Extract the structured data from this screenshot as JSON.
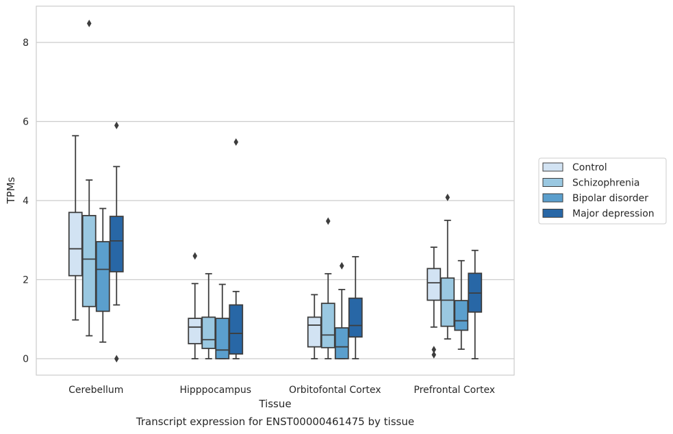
{
  "chart_data": {
    "type": "box",
    "caption": "Transcript expression for ENST00000461475 by tissue",
    "xlabel": "Tissue",
    "ylabel": "TPMs",
    "ylim": [
      -0.4,
      9.0
    ],
    "yticks": [
      0,
      2,
      4,
      6,
      8
    ],
    "grid": "horizontal",
    "legend_position": "right",
    "categories": [
      "Cerebellum",
      "Hipppocampus",
      "Orbitofontal Cortex",
      "Prefrontal Cortex"
    ],
    "series": [
      {
        "name": "Control",
        "color": "#d2e3f3",
        "boxes": [
          {
            "whislo": 0.98,
            "q1": 2.1,
            "med": 2.78,
            "q3": 3.7,
            "whishi": 5.64,
            "fliers": []
          },
          {
            "whislo": 0.0,
            "q1": 0.38,
            "med": 0.8,
            "q3": 1.02,
            "whishi": 1.9,
            "fliers": [
              2.6
            ]
          },
          {
            "whislo": 0.0,
            "q1": 0.3,
            "med": 0.85,
            "q3": 1.05,
            "whishi": 1.62,
            "fliers": []
          },
          {
            "whislo": 0.8,
            "q1": 1.48,
            "med": 1.92,
            "q3": 2.28,
            "whishi": 2.82,
            "fliers": [
              0.23,
              0.1
            ]
          }
        ]
      },
      {
        "name": "Schizophrenia",
        "color": "#9ac8e1",
        "boxes": [
          {
            "whislo": 0.58,
            "q1": 1.32,
            "med": 2.52,
            "q3": 3.62,
            "whishi": 4.52,
            "fliers": [
              8.48
            ]
          },
          {
            "whislo": 0.0,
            "q1": 0.26,
            "med": 0.48,
            "q3": 1.05,
            "whishi": 2.15,
            "fliers": []
          },
          {
            "whislo": 0.0,
            "q1": 0.28,
            "med": 0.6,
            "q3": 1.4,
            "whishi": 2.15,
            "fliers": [
              3.48
            ]
          },
          {
            "whislo": 0.5,
            "q1": 0.82,
            "med": 1.48,
            "q3": 2.04,
            "whishi": 3.5,
            "fliers": [
              4.08
            ]
          }
        ]
      },
      {
        "name": "Bipolar disorder",
        "color": "#5b9fcd",
        "boxes": [
          {
            "whislo": 0.42,
            "q1": 1.2,
            "med": 2.26,
            "q3": 2.96,
            "whishi": 3.8,
            "fliers": []
          },
          {
            "whislo": 0.0,
            "q1": 0.0,
            "med": 0.22,
            "q3": 1.02,
            "whishi": 1.88,
            "fliers": []
          },
          {
            "whislo": 0.0,
            "q1": 0.0,
            "med": 0.3,
            "q3": 0.78,
            "whishi": 1.75,
            "fliers": [
              2.35
            ]
          },
          {
            "whislo": 0.24,
            "q1": 0.72,
            "med": 0.96,
            "q3": 1.47,
            "whishi": 2.48,
            "fliers": []
          }
        ]
      },
      {
        "name": "Major depression",
        "color": "#2867a6",
        "boxes": [
          {
            "whislo": 1.36,
            "q1": 2.2,
            "med": 2.98,
            "q3": 3.6,
            "whishi": 4.86,
            "fliers": [
              5.9,
              0.0
            ]
          },
          {
            "whislo": 0.0,
            "q1": 0.12,
            "med": 0.64,
            "q3": 1.36,
            "whishi": 1.7,
            "fliers": [
              5.48
            ]
          },
          {
            "whislo": 0.0,
            "q1": 0.55,
            "med": 0.84,
            "q3": 1.53,
            "whishi": 2.58,
            "fliers": []
          },
          {
            "whislo": 0.0,
            "q1": 1.18,
            "med": 1.66,
            "q3": 2.16,
            "whishi": 2.74,
            "fliers": []
          }
        ]
      }
    ]
  }
}
